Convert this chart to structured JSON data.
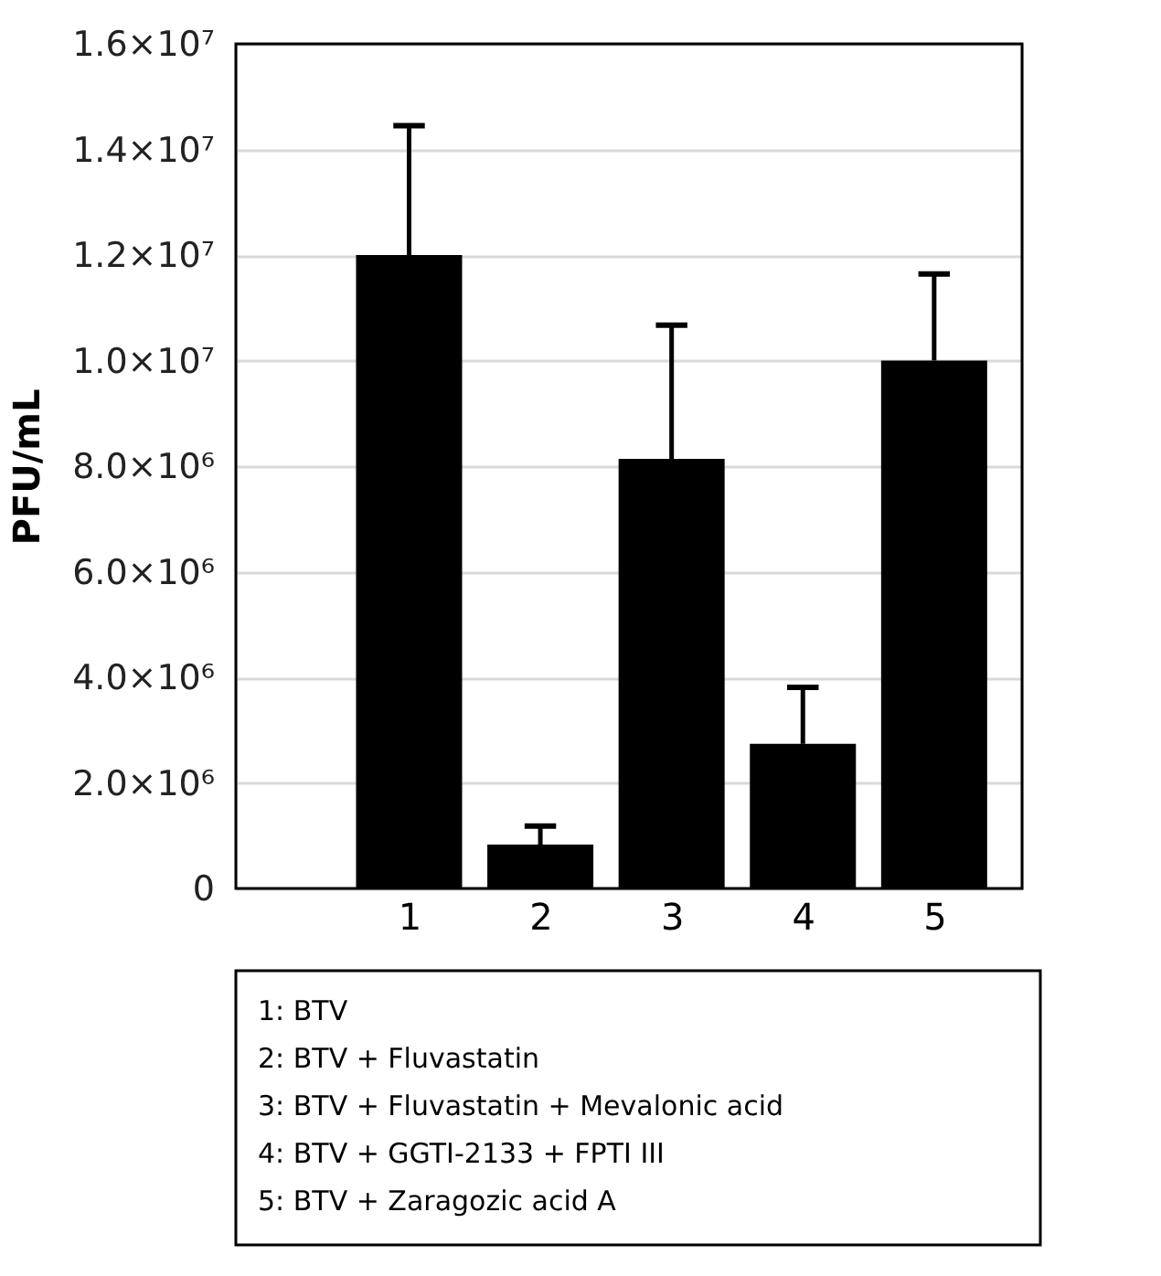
{
  "chart_data": {
    "type": "bar",
    "ylabel": "PFU/mL",
    "categories": [
      "1",
      "2",
      "3",
      "4",
      "5"
    ],
    "values": [
      12000000,
      830000,
      8140000,
      2740000,
      10000000
    ],
    "errors": [
      [
        12000000,
        14450000
      ],
      [
        830000,
        1180000
      ],
      [
        8140000,
        10670000
      ],
      [
        2740000,
        3810000
      ],
      [
        10000000,
        11640000
      ]
    ],
    "color": "#000000",
    "ylim": [
      0,
      16000000
    ],
    "yticks": [
      {
        "value": 0,
        "label": "0"
      },
      {
        "value": 2000000,
        "label": "2.0×10⁶"
      },
      {
        "value": 4000000,
        "label": "4.0×10⁶"
      },
      {
        "value": 6000000,
        "label": "6.0×10⁶"
      },
      {
        "value": 8000000,
        "label": "8.0×10⁶"
      },
      {
        "value": 10000000,
        "label": "1.0×10⁷"
      },
      {
        "value": 12000000,
        "label": "1.2×10⁷"
      },
      {
        "value": 14000000,
        "label": "1.4×10⁷"
      },
      {
        "value": 16000000,
        "label": "1.6×10⁷"
      }
    ],
    "grid": "y",
    "annotations": [
      "1: BTV",
      "2: BTV + Fluvastatin",
      "3: BTV + Fluvastatin + Mevalonic acid",
      "4: BTV + GGTI-2133 + FPTI III",
      "5: BTV + Zaragozic acid A"
    ]
  }
}
